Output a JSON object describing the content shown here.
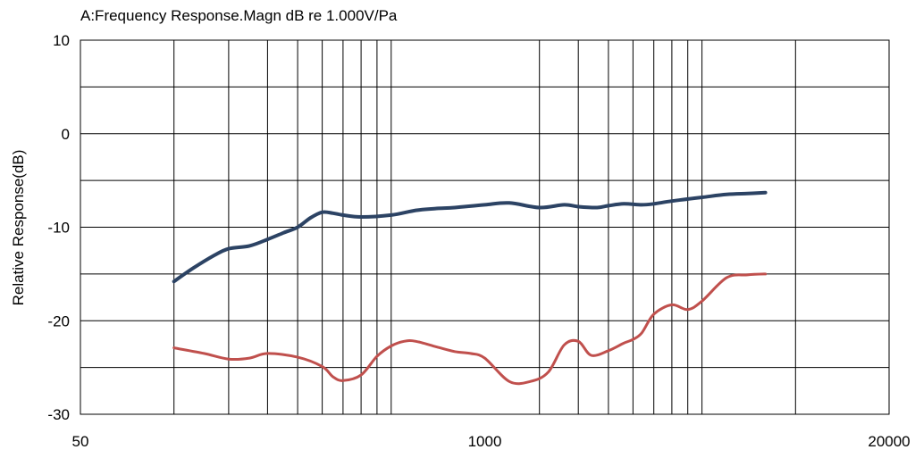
{
  "chart_data": {
    "type": "line",
    "title": "A:Frequency Response.Magn dB re 1.000V/Pa",
    "xlabel": "",
    "ylabel": "Relative Response(dB)",
    "x_scale": "log",
    "xlim": [
      50,
      20000
    ],
    "ylim": [
      -30,
      10
    ],
    "x_ticks": [
      50,
      1000,
      20000
    ],
    "x_tick_labels": [
      "50",
      "1000",
      "20000"
    ],
    "x_gridlines": [
      100,
      150,
      200,
      250,
      300,
      350,
      400,
      450,
      500,
      1500,
      2000,
      2500,
      3000,
      3500,
      4000,
      4500,
      5000,
      10000
    ],
    "y_ticks": [
      -30,
      -20,
      -10,
      0,
      10
    ],
    "y_gridlines": [
      -25,
      -15,
      -5,
      5
    ],
    "grid": true,
    "series": [
      {
        "color": "#2c4364",
        "x": [
          100,
          115,
          135,
          150,
          175,
          200,
          225,
          250,
          275,
          300,
          325,
          350,
          400,
          500,
          600,
          700,
          800,
          1000,
          1200,
          1500,
          1800,
          2000,
          2300,
          2500,
          2800,
          3200,
          3500,
          4000,
          5000,
          6000,
          7000,
          8000
        ],
        "y": [
          -15.8,
          -14.4,
          -13.0,
          -12.3,
          -12.0,
          -11.3,
          -10.6,
          -10.0,
          -9.0,
          -8.4,
          -8.5,
          -8.7,
          -8.9,
          -8.7,
          -8.2,
          -8.0,
          -7.9,
          -7.6,
          -7.4,
          -7.9,
          -7.6,
          -7.8,
          -7.9,
          -7.7,
          -7.5,
          -7.6,
          -7.5,
          -7.2,
          -6.8,
          -6.5,
          -6.4,
          -6.3
        ]
      },
      {
        "color": "#c0504d",
        "x": [
          100,
          125,
          150,
          175,
          200,
          250,
          300,
          325,
          350,
          400,
          450,
          500,
          550,
          600,
          700,
          800,
          900,
          1000,
          1200,
          1400,
          1600,
          1800,
          2000,
          2200,
          2500,
          2800,
          3000,
          3200,
          3500,
          4000,
          4500,
          5000,
          6000,
          7000,
          8000
        ],
        "y": [
          -22.9,
          -23.5,
          -24.1,
          -24.0,
          -23.5,
          -23.9,
          -24.9,
          -26.0,
          -26.4,
          -25.8,
          -23.8,
          -22.7,
          -22.2,
          -22.2,
          -22.8,
          -23.3,
          -23.5,
          -24.0,
          -26.5,
          -26.5,
          -25.5,
          -22.6,
          -22.2,
          -23.7,
          -23.2,
          -22.4,
          -22.0,
          -21.3,
          -19.3,
          -18.3,
          -18.8,
          -17.9,
          -15.4,
          -15.1,
          -15.0
        ]
      }
    ]
  }
}
